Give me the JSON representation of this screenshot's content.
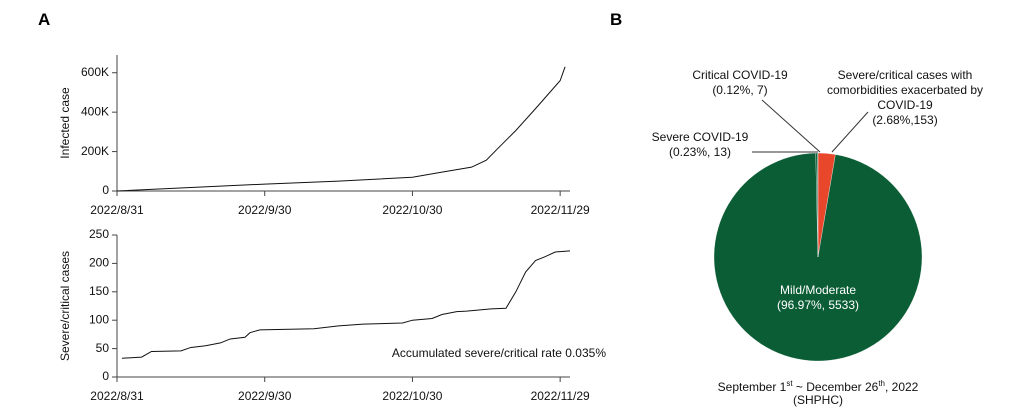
{
  "chart_data": [
    {
      "type": "line",
      "panel": "A",
      "y_label": "Infected case",
      "color": "#111111",
      "x": [
        "2022/8/31",
        "2022/9/15",
        "2022/9/30",
        "2022/10/15",
        "2022/10/30",
        "2022/11/5",
        "2022/11/11",
        "2022/11/14",
        "2022/11/16",
        "2022/11/20",
        "2022/11/24",
        "2022/11/29",
        "2022/11/30"
      ],
      "values": [
        0,
        18000,
        35000,
        50000,
        70000,
        96000,
        121000,
        156000,
        207000,
        307000,
        418000,
        560000,
        630000
      ],
      "xlim": [
        "2022/8/31",
        "2022/12/1"
      ],
      "xticks": [
        "2022/8/31",
        "2022/9/30",
        "2022/10/30",
        "2022/11/29"
      ],
      "ylim": [
        0,
        690000
      ],
      "yticks": [
        0,
        {
          "value": 200000,
          "label": "200K"
        },
        {
          "value": 400000,
          "label": "400K"
        },
        {
          "value": 600000,
          "label": "600K"
        }
      ]
    },
    {
      "type": "line",
      "y_label": "Severe/critical cases",
      "color": "#111111",
      "annotation": "Accumulated severe/critical rate 0.035%",
      "x": [
        "2022/9/1",
        "2022/9/5",
        "2022/9/7",
        "2022/9/13",
        "2022/9/15",
        "2022/9/18",
        "2022/9/21",
        "2022/9/23",
        "2022/9/26",
        "2022/9/27",
        "2022/9/29",
        "2022/10/10",
        "2022/10/15",
        "2022/10/20",
        "2022/10/28",
        "2022/10/30",
        "2022/11/3",
        "2022/11/5",
        "2022/11/8",
        "2022/11/10",
        "2022/11/15",
        "2022/11/18",
        "2022/11/20",
        "2022/11/22",
        "2022/11/24",
        "2022/11/26",
        "2022/11/28",
        "2022/12/1"
      ],
      "values": [
        33,
        35,
        45,
        46,
        52,
        55,
        60,
        67,
        70,
        78,
        83,
        85,
        90,
        93,
        95,
        100,
        103,
        110,
        115,
        116,
        120,
        121,
        150,
        185,
        205,
        212,
        220,
        222
      ],
      "xlim": [
        "2022/8/31",
        "2022/12/1"
      ],
      "xticks": [
        "2022/8/31",
        "2022/9/30",
        "2022/10/30",
        "2022/11/29"
      ],
      "ylim": [
        0,
        250
      ],
      "yticks": [
        0,
        50,
        100,
        150,
        200,
        250
      ]
    },
    {
      "type": "pie",
      "panel": "B",
      "categories": [
        "Severe/critical cases with comorbidities exacerbated by COVID-19",
        "Mild/Moderate",
        "Severe COVID-19",
        "Critical COVID-19"
      ],
      "values": [
        153,
        5533,
        13,
        7
      ],
      "value_labels": [
        "(2.68%,153)",
        "(96.97%, 5533)",
        "(0.23%, 13)",
        "(0.12%, 7)"
      ],
      "colors": [
        "#e8472b",
        "#0b5d35",
        "#0b5d35",
        "#0b5d35"
      ],
      "note": [
        "September 1",
        "st",
        " ~ December 26",
        "th",
        ", 2022"
      ],
      "source": "(SHPHC)"
    }
  ]
}
